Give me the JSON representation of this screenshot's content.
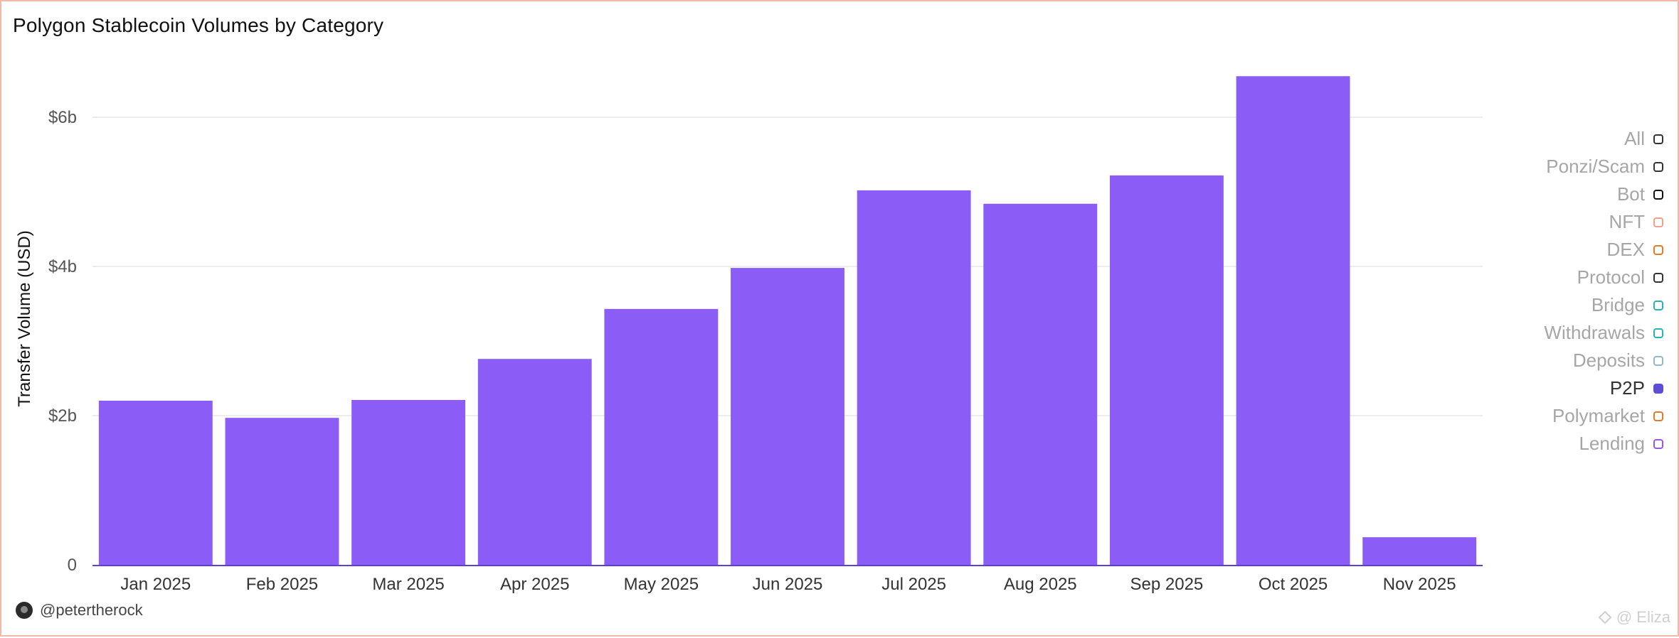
{
  "chart_data": {
    "type": "bar",
    "title": "Polygon Stablecoin Volumes by Category",
    "xlabel": "",
    "ylabel": "Transfer Volume (USD)",
    "categories": [
      "Jan 2025",
      "Feb 2025",
      "Mar 2025",
      "Apr 2025",
      "May 2025",
      "Jun 2025",
      "Jul 2025",
      "Aug 2025",
      "Sep 2025",
      "Oct 2025",
      "Nov 2025"
    ],
    "series": [
      {
        "name": "P2P",
        "color": "#8b5cf6",
        "values": [
          2.2,
          1.97,
          2.21,
          2.76,
          3.43,
          3.98,
          5.02,
          4.84,
          5.22,
          6.55,
          0.37
        ]
      }
    ],
    "ylim": [
      0,
      6.6
    ],
    "yticks": [
      {
        "value": 0,
        "label": "0"
      },
      {
        "value": 2,
        "label": "$2b"
      },
      {
        "value": 4,
        "label": "$4b"
      },
      {
        "value": 6,
        "label": "$6b"
      }
    ],
    "grid": true,
    "legend_position": "right"
  },
  "legend": [
    {
      "label": "All",
      "color": "#333333",
      "active": false
    },
    {
      "label": "Ponzi/Scam",
      "color": "#333333",
      "active": false
    },
    {
      "label": "Bot",
      "color": "#111111",
      "active": false
    },
    {
      "label": "NFT",
      "color": "#f0a08a",
      "active": false
    },
    {
      "label": "DEX",
      "color": "#e07b2a",
      "active": false
    },
    {
      "label": "Protocol",
      "color": "#333333",
      "active": false
    },
    {
      "label": "Bridge",
      "color": "#2ab3b3",
      "active": false
    },
    {
      "label": "Withdrawals",
      "color": "#2ab3b3",
      "active": false
    },
    {
      "label": "Deposits",
      "color": "#8fb8c8",
      "active": false
    },
    {
      "label": "P2P",
      "color": "#5b4fd6",
      "active": true
    },
    {
      "label": "Polymarket",
      "color": "#e07b2a",
      "active": false
    },
    {
      "label": "Lending",
      "color": "#9b59d6",
      "active": false
    }
  ],
  "footer": {
    "handle": "@petertherock"
  },
  "watermark": {
    "text": "@ Eliza"
  }
}
